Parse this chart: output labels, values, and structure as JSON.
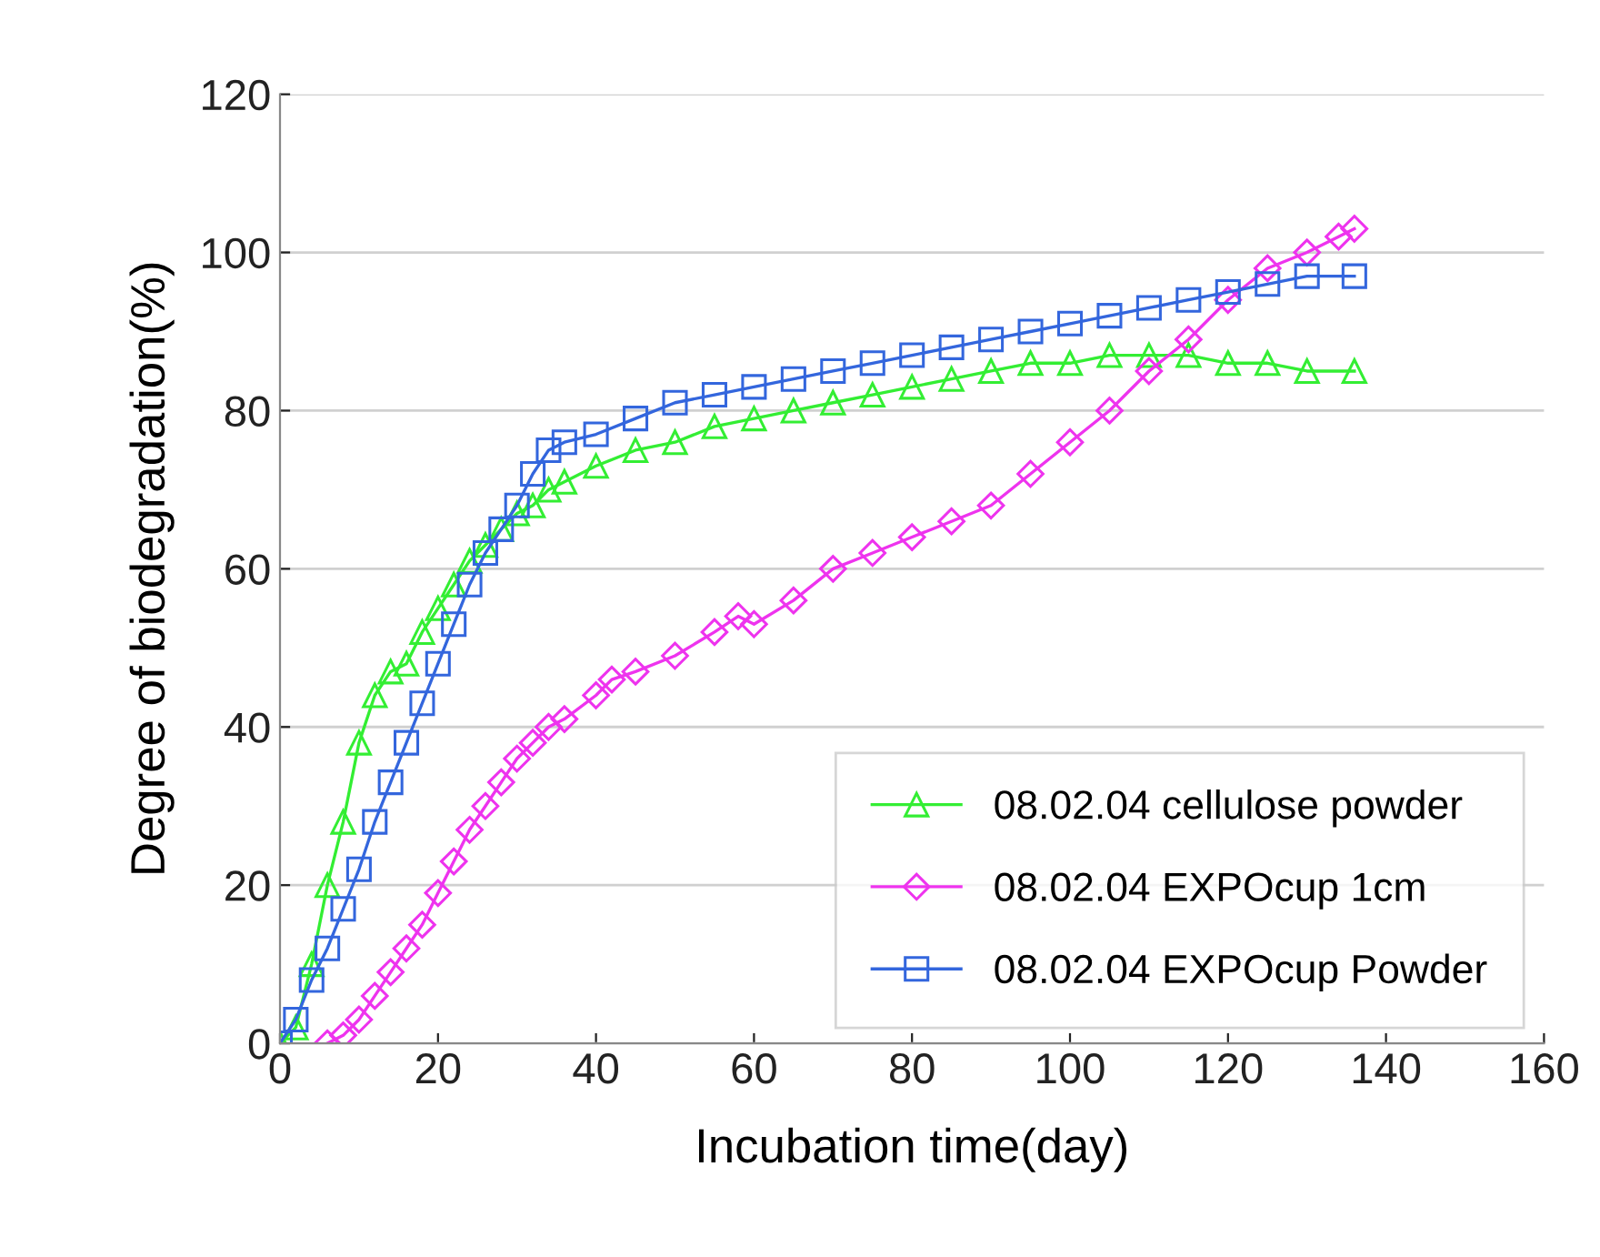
{
  "chart_data": {
    "type": "line",
    "xlabel": "Incubation time(day)",
    "ylabel": "Degree of biodegradation(%)",
    "xlim": [
      0,
      160
    ],
    "xticks": [
      0,
      20,
      40,
      60,
      80,
      100,
      120,
      140,
      160
    ],
    "ylim": [
      0,
      120
    ],
    "yticks": [
      0,
      20,
      40,
      60,
      80,
      100,
      120
    ],
    "grid": "y",
    "legend": "bottom right",
    "line_style": "solid",
    "series": [
      {
        "name": "08.02.04 cellulose powder",
        "color": "#33ee33",
        "marker": "triangle",
        "x": [
          0,
          2,
          4,
          6,
          8,
          10,
          12,
          14,
          16,
          18,
          20,
          22,
          24,
          26,
          28,
          30,
          32,
          34,
          36,
          40,
          45,
          50,
          55,
          60,
          65,
          70,
          75,
          80,
          85,
          90,
          95,
          100,
          105,
          110,
          115,
          120,
          125,
          130,
          136
        ],
        "values": [
          0,
          2,
          10,
          20,
          28,
          38,
          44,
          47,
          48,
          52,
          55,
          58,
          61,
          63,
          65,
          67,
          68,
          70,
          71,
          73,
          75,
          76,
          78,
          79,
          80,
          81,
          82,
          83,
          84,
          85,
          86,
          86,
          87,
          87,
          87,
          86,
          86,
          85,
          85
        ]
      },
      {
        "name": "08.02.04 EXPOcup 1cm",
        "color": "#ee33ee",
        "marker": "diamond",
        "x": [
          6,
          8,
          10,
          12,
          14,
          16,
          18,
          20,
          22,
          24,
          26,
          28,
          30,
          32,
          34,
          36,
          40,
          42,
          45,
          50,
          55,
          58,
          60,
          65,
          70,
          75,
          80,
          85,
          90,
          95,
          100,
          105,
          110,
          115,
          120,
          125,
          130,
          134,
          136
        ],
        "values": [
          0,
          1,
          3,
          6,
          9,
          12,
          15,
          19,
          23,
          27,
          30,
          33,
          36,
          38,
          40,
          41,
          44,
          46,
          47,
          49,
          52,
          54,
          53,
          56,
          60,
          62,
          64,
          66,
          68,
          72,
          76,
          80,
          85,
          89,
          94,
          98,
          100,
          102,
          103
        ]
      },
      {
        "name": "08.02.04 EXPOcup Powder",
        "color": "#3366dd",
        "marker": "square",
        "x": [
          0,
          2,
          4,
          6,
          8,
          10,
          12,
          14,
          16,
          18,
          20,
          22,
          24,
          26,
          28,
          30,
          32,
          34,
          36,
          40,
          45,
          50,
          55,
          60,
          65,
          70,
          75,
          80,
          85,
          90,
          95,
          100,
          105,
          110,
          115,
          120,
          125,
          130,
          136
        ],
        "values": [
          0,
          3,
          8,
          12,
          17,
          22,
          28,
          33,
          38,
          43,
          48,
          53,
          58,
          62,
          65,
          68,
          72,
          75,
          76,
          77,
          79,
          81,
          82,
          83,
          84,
          85,
          86,
          87,
          88,
          89,
          90,
          91,
          92,
          93,
          94,
          95,
          96,
          97,
          97
        ]
      }
    ]
  }
}
